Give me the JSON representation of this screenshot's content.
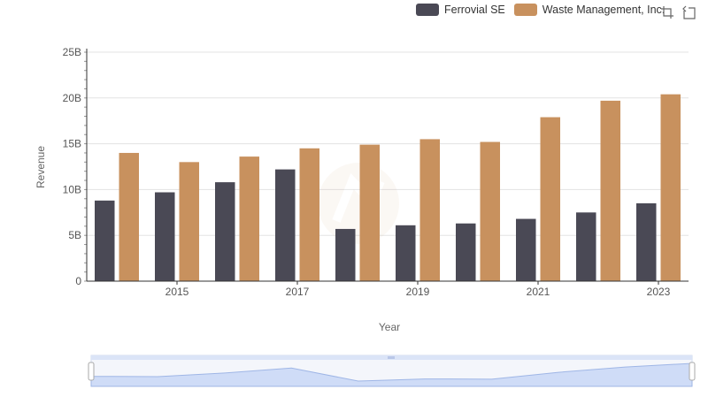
{
  "legend": {
    "items": [
      {
        "label": "Ferrovial SE",
        "color": "#4a4955"
      },
      {
        "label": "Waste Management, Inc.",
        "color": "#c8915e"
      }
    ]
  },
  "toolbox": {
    "icons": [
      "zoom-icon",
      "restore-icon"
    ]
  },
  "chart_data": {
    "type": "bar",
    "categories": [
      "2014",
      "2015",
      "2016",
      "2017",
      "2018",
      "2019",
      "2020",
      "2021",
      "2022",
      "2023"
    ],
    "x_tick_labels": [
      "2015",
      "2017",
      "2019",
      "2021",
      "2023"
    ],
    "xlabel": "Year",
    "ylabel": "Revenue",
    "ylim": [
      0,
      25000000000
    ],
    "y_tick_labels": [
      "0",
      "5B",
      "10B",
      "15B",
      "20B",
      "25B"
    ],
    "grid": "horizontal",
    "legend_position": "top-right",
    "series": [
      {
        "name": "Ferrovial SE",
        "color": "#4a4955",
        "values": [
          8800000000,
          9700000000,
          10800000000,
          12200000000,
          5700000000,
          6100000000,
          6300000000,
          6800000000,
          7500000000,
          8500000000
        ]
      },
      {
        "name": "Waste Management, Inc.",
        "color": "#c8915e",
        "values": [
          14000000000,
          13000000000,
          13600000000,
          14500000000,
          14900000000,
          15500000000,
          15200000000,
          17900000000,
          19700000000,
          20400000000
        ]
      }
    ]
  },
  "datazoom": {
    "start_percent": 0,
    "end_percent": 100
  }
}
